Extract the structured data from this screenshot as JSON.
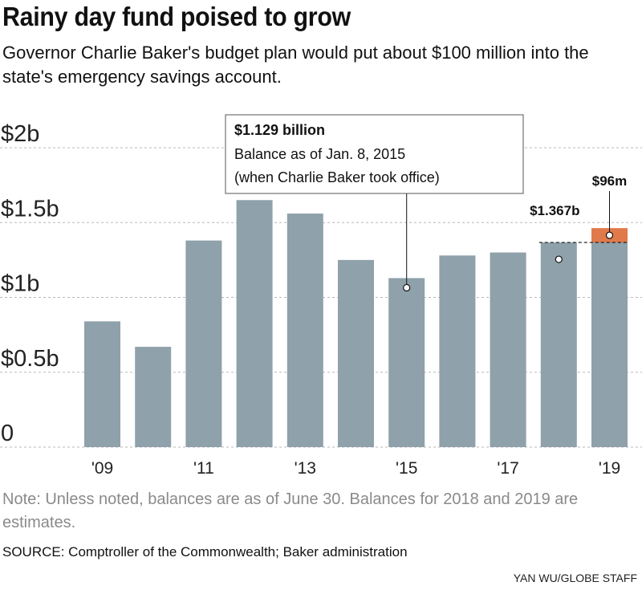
{
  "header": {
    "title": "Rainy day fund poised to grow",
    "subtitle": "Governor Charlie Baker's budget plan would put about $100 million into the state's emergency savings account."
  },
  "footer": {
    "note": "Note: Unless noted, balances are as of June 30. Balances for 2018 and 2019 are estimates.",
    "source": "SOURCE:  Comptroller of the Commonwealth; Baker administration",
    "credit": "YAN WU/GLOBE STAFF"
  },
  "chart_data": {
    "type": "bar",
    "categories": [
      "2009",
      "2010",
      "2011",
      "2012",
      "2013",
      "2014",
      "2015",
      "2016",
      "2017",
      "2018",
      "2019"
    ],
    "x_tick_labels": [
      {
        "category": "2009",
        "text": "'09"
      },
      {
        "category": "2011",
        "text": "'11"
      },
      {
        "category": "2013",
        "text": "'13"
      },
      {
        "category": "2015",
        "text": "'15"
      },
      {
        "category": "2017",
        "text": "'17"
      },
      {
        "category": "2019",
        "text": "'19"
      }
    ],
    "series": [
      {
        "values": [
          0.84,
          0.67,
          1.38,
          1.65,
          1.56,
          1.25,
          1.129,
          1.28,
          1.3,
          1.367,
          1.367
        ]
      },
      {
        "values": [
          0,
          0,
          0,
          0,
          0,
          0,
          0,
          0,
          0,
          0,
          0.096
        ]
      }
    ],
    "ylim": [
      0,
      2
    ],
    "y_ticks": [
      {
        "value": 0,
        "label": "0"
      },
      {
        "value": 0.5,
        "label": "$0.5b"
      },
      {
        "value": 1,
        "label": "$1b"
      },
      {
        "value": 1.5,
        "label": "$1.5b"
      },
      {
        "value": 2,
        "label": "$2b"
      }
    ],
    "grid": true,
    "colors": {
      "base": "#8fa1aa",
      "increase": "#e07a4a",
      "grid": "#b8b8b8"
    },
    "annotations": {
      "callout_box": {
        "category": "2015",
        "title": "$1.129 billion",
        "lines": [
          "Balance as of Jan. 8, 2015",
          "(when Charlie Baker took office)"
        ]
      },
      "label_2018": {
        "category": "2018",
        "value": 1.367,
        "text": "$1.367b"
      },
      "label_2019": {
        "category": "2019",
        "text": "$96m"
      }
    }
  }
}
